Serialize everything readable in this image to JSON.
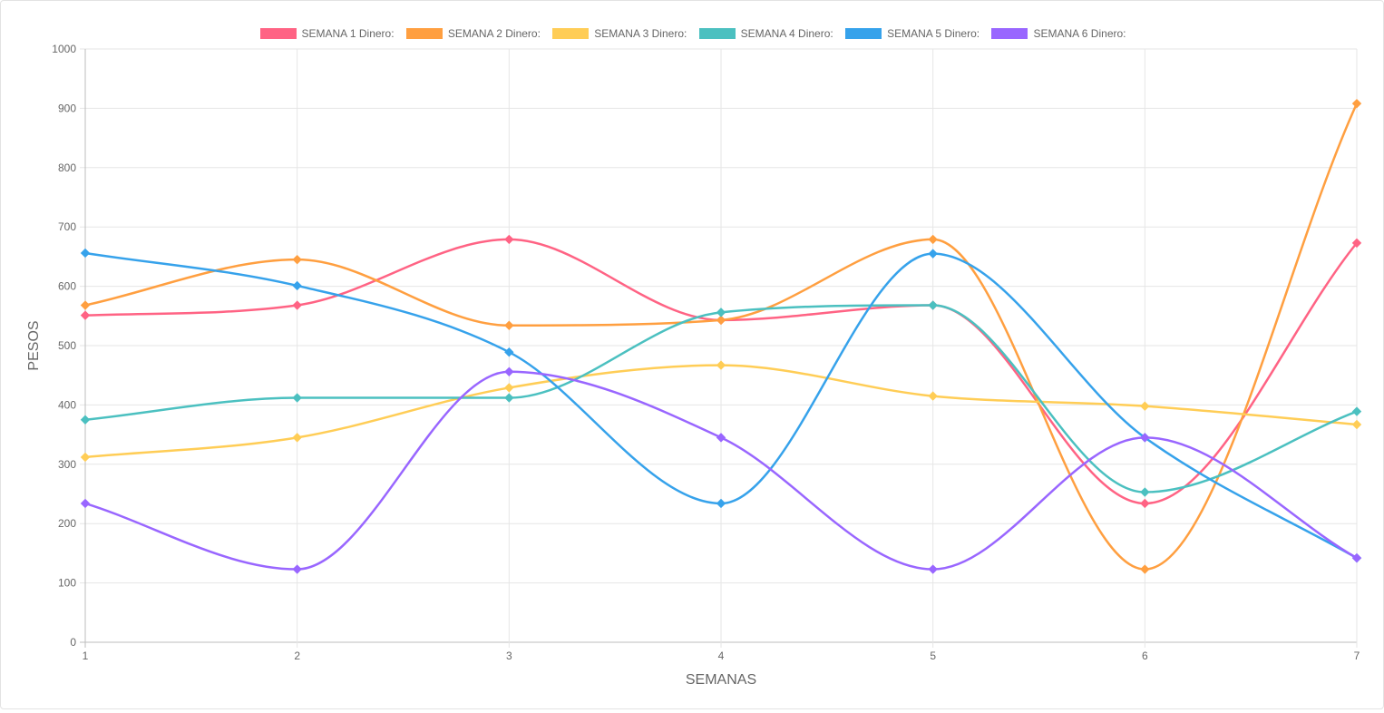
{
  "chart_data": {
    "type": "line",
    "x": [
      1,
      2,
      3,
      4,
      5,
      6,
      7
    ],
    "categories": [
      "1",
      "2",
      "3",
      "4",
      "5",
      "6",
      "7"
    ],
    "xlabel": "SEMANAS",
    "ylabel": "PESOS",
    "ylim": [
      0,
      1000
    ],
    "yticks": [
      "0",
      "100",
      "200",
      "300",
      "400",
      "500",
      "600",
      "700",
      "800",
      "900",
      "1000"
    ],
    "grid": true,
    "legend_position": "top",
    "curve": "smooth",
    "marker": "diamond",
    "series": [
      {
        "name": "SEMANA 1 Dinero:",
        "color": "#ff6384",
        "values": [
          551,
          568,
          679,
          543,
          568,
          234,
          673
        ]
      },
      {
        "name": "SEMANA 2 Dinero:",
        "color": "#ff9f40",
        "values": [
          568,
          645,
          534,
          543,
          679,
          123,
          908
        ]
      },
      {
        "name": "SEMANA 3 Dinero:",
        "color": "#ffcd56",
        "values": [
          312,
          345,
          429,
          467,
          415,
          398,
          367
        ]
      },
      {
        "name": "SEMANA 4 Dinero:",
        "color": "#4bc0c0",
        "values": [
          375,
          412,
          412,
          556,
          568,
          253,
          389
        ]
      },
      {
        "name": "SEMANA 5 Dinero:",
        "color": "#36a2eb",
        "values": [
          656,
          601,
          489,
          234,
          655,
          345,
          142
        ]
      },
      {
        "name": "SEMANA 6 Dinero:",
        "color": "#9966ff",
        "values": [
          234,
          123,
          456,
          345,
          123,
          345,
          142
        ]
      }
    ]
  }
}
